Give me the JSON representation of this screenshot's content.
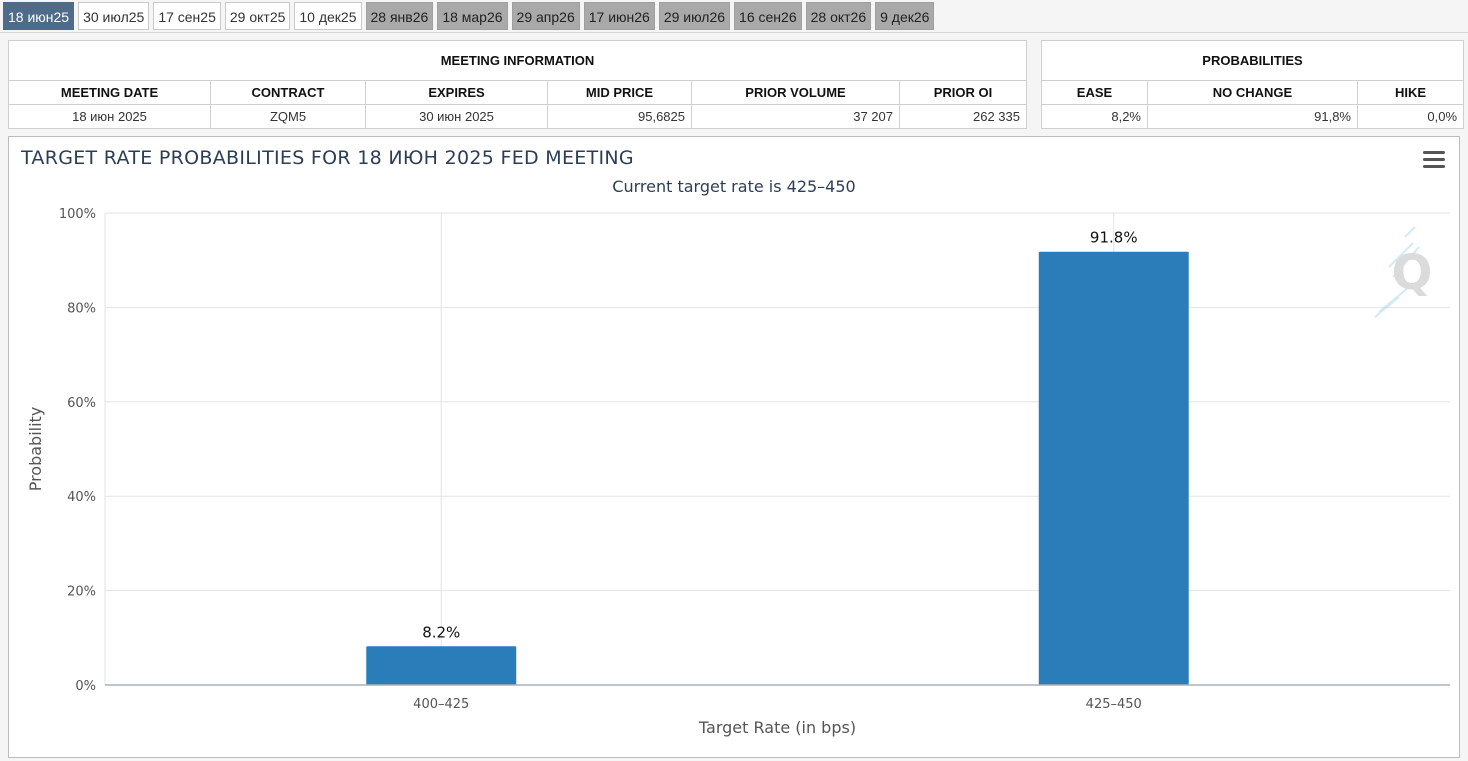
{
  "tabs": [
    {
      "label": "18 июн25",
      "state": "active"
    },
    {
      "label": "30 июл25",
      "state": "light"
    },
    {
      "label": "17 сен25",
      "state": "light"
    },
    {
      "label": "29 окт25",
      "state": "light"
    },
    {
      "label": "10 дек25",
      "state": "light"
    },
    {
      "label": "28 янв26",
      "state": "dark"
    },
    {
      "label": "18 мар26",
      "state": "dark"
    },
    {
      "label": "29 апр26",
      "state": "dark"
    },
    {
      "label": "17 июн26",
      "state": "dark"
    },
    {
      "label": "29 июл26",
      "state": "dark"
    },
    {
      "label": "16 сен26",
      "state": "dark"
    },
    {
      "label": "28 окт26",
      "state": "dark"
    },
    {
      "label": "9 дек26",
      "state": "dark"
    }
  ],
  "meeting_info": {
    "title": "MEETING INFORMATION",
    "headers": {
      "meeting_date": "MEETING DATE",
      "contract": "CONTRACT",
      "expires": "EXPIRES",
      "mid_price": "MID PRICE",
      "prior_volume": "PRIOR VOLUME",
      "prior_oi": "PRIOR OI"
    },
    "values": {
      "meeting_date": "18 июн 2025",
      "contract": "ZQM5",
      "expires": "30 июн 2025",
      "mid_price": "95,6825",
      "prior_volume": "37 207",
      "prior_oi": "262 335"
    }
  },
  "probabilities": {
    "title": "PROBABILITIES",
    "headers": {
      "ease": "EASE",
      "no_change": "NO CHANGE",
      "hike": "HIKE"
    },
    "values": {
      "ease": "8,2%",
      "no_change": "91,8%",
      "hike": "0,0%"
    }
  },
  "chart": {
    "menu_icon": "hamburger-menu-icon",
    "watermark_icon": "q-logo-icon",
    "bar_color": "#2a7db8"
  },
  "chart_data": {
    "type": "bar",
    "title": "TARGET RATE PROBABILITIES FOR 18 ИЮН 2025 FED MEETING",
    "subtitle": "Current target rate is 425–450",
    "xlabel": "Target Rate (in bps)",
    "ylabel": "Probability",
    "categories": [
      "400–425",
      "425–450"
    ],
    "values": [
      8.2,
      91.8
    ],
    "data_labels": [
      "8.2%",
      "91.8%"
    ],
    "ylim": [
      0,
      100
    ],
    "yticks": [
      0,
      20,
      40,
      60,
      80,
      100
    ],
    "ytick_labels": [
      "0%",
      "20%",
      "40%",
      "60%",
      "80%",
      "100%"
    ],
    "grid": true,
    "legend": "none"
  }
}
